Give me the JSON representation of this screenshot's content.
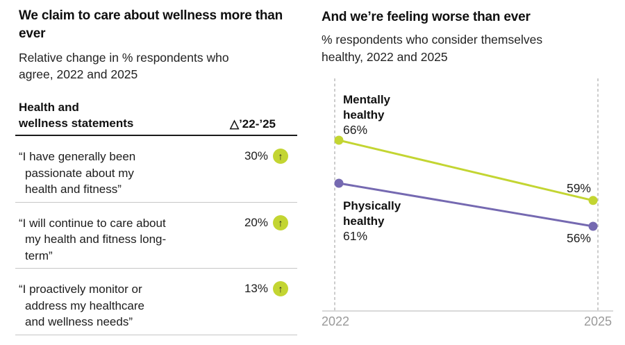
{
  "left_panel": {
    "title": "We claim to care about wellness more than ever",
    "subtitle": "Relative change in % respondents who agree, 2022 and 2025",
    "table": {
      "col1_header_lines": [
        "Health and",
        "wellness statements"
      ],
      "col2_header": "△’22-’25",
      "arrow_glyph": "↑",
      "rows": [
        {
          "statement": "“I have generally been passionate about my health and fitness”",
          "change": "30%",
          "direction": "up"
        },
        {
          "statement": "“I will continue to care about my health and fitness long-term”",
          "change": "20%",
          "direction": "up"
        },
        {
          "statement": "“I proactively monitor or address my healthcare and wellness needs”",
          "change": "13%",
          "direction": "up"
        }
      ]
    }
  },
  "right_panel": {
    "title": "And we’re feeling worse than ever",
    "subtitle": "% respondents who consider themselves healthy, 2022 and 2025",
    "value_labels": {
      "mentally_2022": "66%",
      "mentally_2025": "59%",
      "physically_2022": "61%",
      "physically_2025": "56%"
    }
  },
  "chart_data": {
    "type": "line",
    "variant": "slopegraph",
    "x": [
      "2022",
      "2025"
    ],
    "series": [
      {
        "name": "Mentally healthy",
        "values": [
          66,
          59
        ],
        "color": "#c3d532"
      },
      {
        "name": "Physically healthy",
        "values": [
          61,
          56
        ],
        "color": "#7569b1"
      }
    ],
    "grid": "dashed-vertical-at-x",
    "legend": "inline-labels-at-line-start",
    "value_suffix": "%"
  },
  "colors": {
    "accent_green": "#c3d532",
    "accent_purple": "#7569b1",
    "axis_gray": "#b3b3b3",
    "gridline_gray": "#ababab",
    "tick_label_gray": "#9a9a9a",
    "header_rule": "#1a1a1a",
    "row_rule": "#c6c6c6"
  }
}
